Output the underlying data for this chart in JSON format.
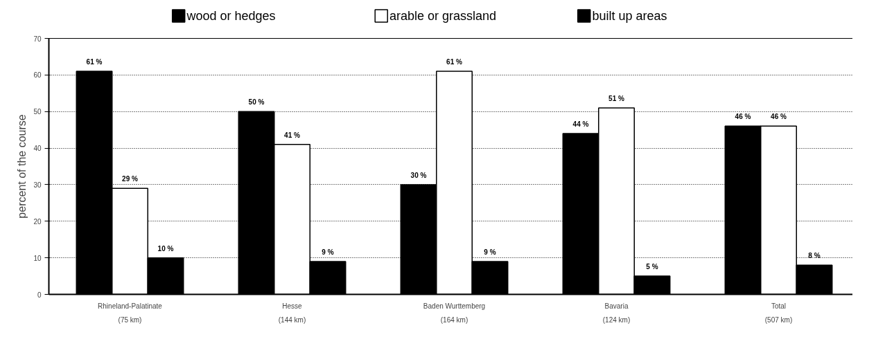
{
  "chart_data": {
    "type": "bar",
    "categories": [
      "Rhineland-Palatinate\n(75 km)",
      "Hesse\n(144 km)",
      "Baden Wurttemberg\n(164 km)",
      "Bavaria\n(124 km)",
      "Total\n(507 km)"
    ],
    "series": [
      {
        "name": "wood or hedges",
        "color": "#000000",
        "values": [
          61,
          50,
          30,
          44,
          46
        ],
        "value_labels": [
          "61 %",
          "50 %",
          "30 %",
          "44 %",
          "46 %"
        ]
      },
      {
        "name": "arable or grassland",
        "color": "#ffffff",
        "values": [
          29,
          41,
          61,
          51,
          46
        ],
        "value_labels": [
          "29 %",
          "41 %",
          "61 %",
          "51 %",
          "46 %"
        ]
      },
      {
        "name": "built up areas",
        "color": "#000000",
        "values": [
          10,
          9,
          9,
          5,
          8
        ],
        "value_labels": [
          "10 %",
          "9 %",
          "9 %",
          "5 %",
          "8 %"
        ]
      }
    ],
    "ylabel": "percent of the course",
    "ylim": [
      0,
      70
    ],
    "yticks": [
      0,
      10,
      20,
      30,
      40,
      50,
      60,
      70
    ],
    "grid": "y",
    "legend": "top"
  }
}
